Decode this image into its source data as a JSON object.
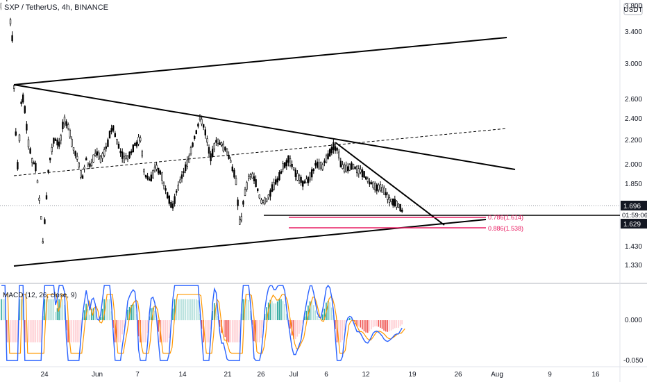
{
  "header": {
    "symbol_label": "SXP / TetherUS, 4h, BINANCE",
    "currency_badge": "USDT"
  },
  "colors": {
    "candle": "#000000",
    "trendline": "#000000",
    "fib": "#e91e63",
    "macd_line": "#2962ff",
    "signal_line": "#ff9800",
    "hist_pos": "#26a69a",
    "hist_neg": "#ef5350"
  },
  "chart_data": [
    {
      "type": "candlestick",
      "price_axis": {
        "scale": "log",
        "ticks": [
          "3.800",
          "3.400",
          "3.000",
          "2.600",
          "2.400",
          "2.200",
          "2.000",
          "1.850",
          "1.430",
          "1.330"
        ],
        "range": [
          1.27,
          3.8
        ]
      },
      "x_axis_labels": [
        "24",
        "Jun",
        "7",
        "14",
        "21",
        "26",
        "Jul",
        "6",
        "12",
        "19",
        "26",
        "Aug",
        "9",
        "16"
      ],
      "price_tags": [
        {
          "label": "1.696",
          "style": "dark"
        },
        {
          "label": "01:59:06",
          "style": "light"
        },
        {
          "label": "1.629",
          "style": "dark"
        }
      ],
      "fib_levels": [
        {
          "label": "0.786(1.614)",
          "value": 1.614
        },
        {
          "label": "0.886(1.538)",
          "value": 1.538
        }
      ],
      "trendlines": [
        {
          "name": "upper-rising",
          "from": [
            "May 17",
            2.75
          ],
          "to": [
            "Aug 1",
            3.35
          ]
        },
        {
          "name": "descending-resistance",
          "from": [
            "May 17",
            2.75
          ],
          "to": [
            "Aug 1",
            1.95
          ]
        },
        {
          "name": "lower-support",
          "from": [
            "May 17",
            1.32
          ],
          "to": [
            "Jul 29",
            1.63
          ]
        },
        {
          "name": "short-term-descending",
          "from": [
            "Jul 6",
            2.2
          ],
          "to": [
            "Jul 20",
            1.6
          ]
        },
        {
          "name": "horizontal-support",
          "from": [
            "Jun 26",
            1.65
          ],
          "to": [
            "Aug 23",
            1.65
          ]
        },
        {
          "name": "dashed-midline",
          "from": [
            "May 17",
            1.9
          ],
          "to": [
            "Aug 1",
            2.31
          ]
        }
      ]
    },
    {
      "type": "macd",
      "label": "MACD (12, 26, close, 9)",
      "y_ticks": [
        "0.000",
        "-0.050"
      ]
    }
  ]
}
